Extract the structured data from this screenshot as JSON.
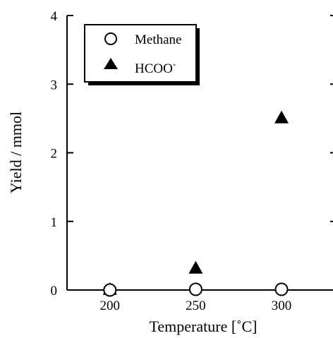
{
  "chart_data": {
    "type": "scatter",
    "title": "",
    "xlabel": "Temperature [˚C]",
    "ylabel": "Yield / mmol",
    "xlim": [
      175,
      330
    ],
    "ylim": [
      0,
      4
    ],
    "xticks": [
      200,
      250,
      300
    ],
    "yticks": [
      0,
      1,
      2,
      3,
      4
    ],
    "xtick_labels": [
      "200",
      "250",
      "300"
    ],
    "ytick_labels": [
      "0",
      "1",
      "2",
      "3",
      "4"
    ],
    "grid": false,
    "legend": "top-left",
    "series": [
      {
        "name": "Methane",
        "marker": "open-circle",
        "x": [
          200,
          250,
          300
        ],
        "y": [
          0.0,
          0.01,
          0.01
        ]
      },
      {
        "name": "HCOO",
        "name_superscript": "-",
        "marker": "filled-triangle",
        "x": [
          200,
          250,
          300
        ],
        "y": [
          0.0,
          0.31,
          2.5
        ]
      }
    ]
  }
}
